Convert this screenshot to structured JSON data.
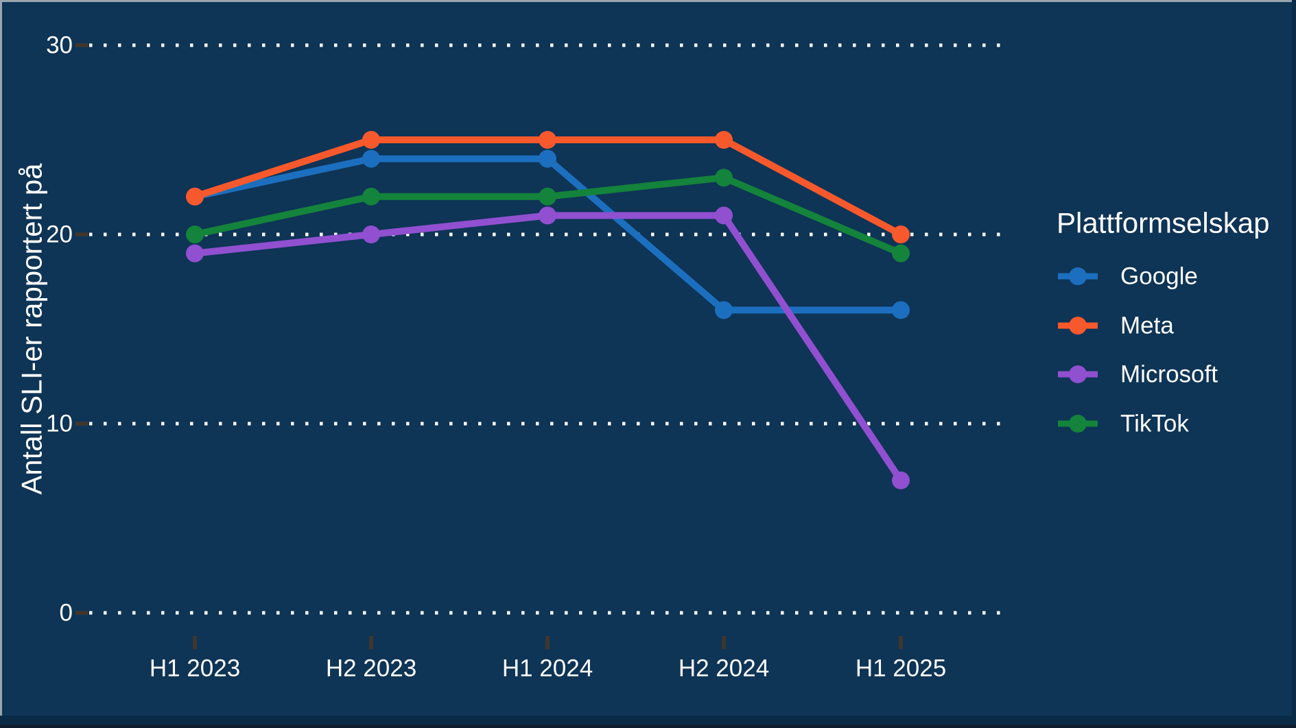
{
  "chart_data": {
    "type": "line",
    "title": "",
    "xlabel": "",
    "ylabel": "Antall SLI-er rapportert på",
    "categories": [
      "H1 2023",
      "H2 2023",
      "H1 2024",
      "H2 2024",
      "H1 2025"
    ],
    "series": [
      {
        "name": "Google",
        "color": "#1C6FBE",
        "values": [
          22,
          24,
          24,
          16,
          16
        ]
      },
      {
        "name": "Meta",
        "color": "#F8592C",
        "values": [
          22,
          25,
          25,
          25,
          20
        ]
      },
      {
        "name": "Microsoft",
        "color": "#9050D0",
        "values": [
          19,
          20,
          21,
          21,
          7
        ]
      },
      {
        "name": "TikTok",
        "color": "#14833B",
        "values": [
          20,
          22,
          22,
          23,
          19
        ]
      }
    ],
    "legend": {
      "title": "Plattformselskap",
      "position": "right",
      "entries": [
        "Google",
        "Meta",
        "Microsoft",
        "TikTok"
      ]
    },
    "y_ticks": [
      0,
      10,
      20,
      30
    ],
    "ylim": [
      0,
      31
    ],
    "grid": {
      "horizontal": "dotted",
      "color": "#FFFFFF"
    },
    "colors": {
      "background": "#0E3456",
      "text": "#FFFFFF",
      "tick_mark": "#3F362D"
    }
  }
}
